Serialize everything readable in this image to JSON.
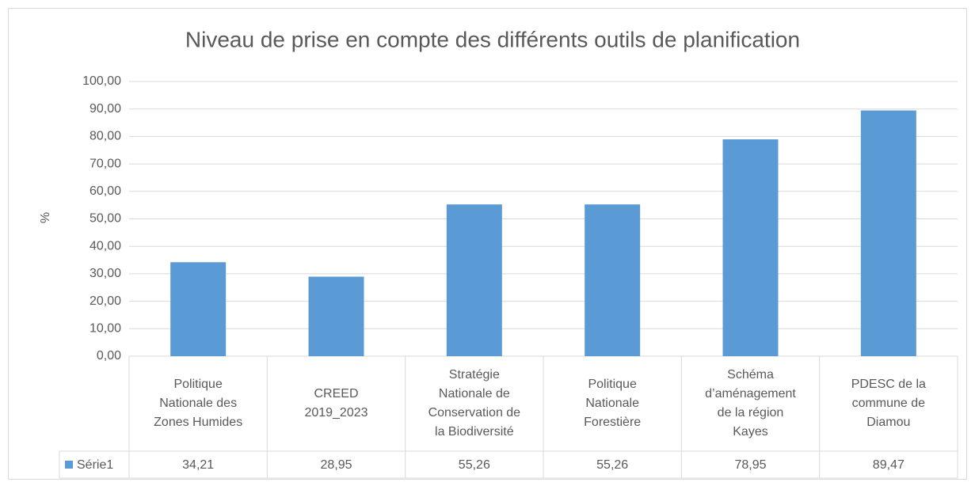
{
  "chart_data": {
    "type": "bar",
    "title": "Niveau de prise en compte des différents outils de planification",
    "ylabel": "%",
    "categories": [
      "Politique Nationale des Zones Humides",
      "CREED 2019_2023",
      "Stratégie Nationale de Conservation de la Biodiversité",
      "Politique Nationale Forestière",
      "Schéma d’aménagement de la région Kayes",
      "PDESC de la commune de Diamou"
    ],
    "series": [
      {
        "name": "Série1",
        "color": "#5b9bd5",
        "values": [
          34.21,
          28.95,
          55.26,
          55.26,
          78.95,
          89.47
        ],
        "value_labels": [
          "34,21",
          "28,95",
          "55,26",
          "55,26",
          "78,95",
          "89,47"
        ]
      }
    ],
    "ylim": [
      0,
      100
    ],
    "yticks": [
      {
        "value": 0,
        "label": "0,00"
      },
      {
        "value": 10,
        "label": "10,00"
      },
      {
        "value": 20,
        "label": "20,00"
      },
      {
        "value": 30,
        "label": "30,00"
      },
      {
        "value": 40,
        "label": "40,00"
      },
      {
        "value": 50,
        "label": "50,00"
      },
      {
        "value": 60,
        "label": "60,00"
      },
      {
        "value": 70,
        "label": "70,00"
      },
      {
        "value": 80,
        "label": "80,00"
      },
      {
        "value": 90,
        "label": "90,00"
      },
      {
        "value": 100,
        "label": "100,00"
      }
    ],
    "grid": true
  }
}
